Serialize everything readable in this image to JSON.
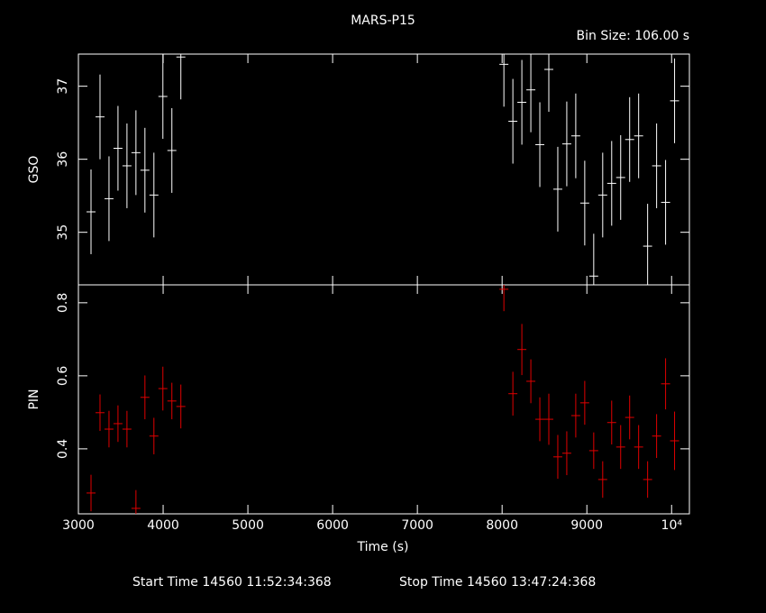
{
  "chart_data": [
    {
      "type": "errorbar",
      "title": "MARS-P15",
      "subtitle": "Bin Size: 106.00 s",
      "ylabel": "GSO",
      "xlim": [
        3000,
        10210
      ],
      "xticks": [
        3000,
        4000,
        5000,
        6000,
        7000,
        8000,
        9000,
        10000
      ],
      "ylim": [
        34.28,
        37.44
      ],
      "yticks": [
        35,
        36,
        37
      ],
      "series": [
        {
          "color": "#ffffff",
          "xerr": 53,
          "x": [
            3149,
            3255,
            3361,
            3467,
            3573,
            3679,
            3785,
            3891,
            3997,
            4103,
            4209,
            8021,
            8127,
            8233,
            8339,
            8445,
            8551,
            8657,
            8763,
            8869,
            8975,
            9081,
            9187,
            9293,
            9399,
            9505,
            9611,
            9717,
            9823,
            9929,
            10035
          ],
          "values": [
            35.28,
            36.58,
            35.46,
            36.15,
            35.91,
            36.09,
            35.85,
            35.51,
            36.86,
            36.12,
            37.4,
            37.3,
            36.52,
            36.78,
            36.95,
            36.2,
            37.23,
            35.59,
            36.21,
            36.32,
            35.4,
            34.4,
            35.51,
            35.67,
            35.75,
            36.27,
            36.32,
            34.81,
            35.91,
            35.41,
            36.8
          ],
          "errors": [
            0.58,
            0.58,
            0.58,
            0.58,
            0.58,
            0.58,
            0.58,
            0.58,
            0.58,
            0.58,
            0.58,
            0.58,
            0.58,
            0.58,
            0.58,
            0.58,
            0.58,
            0.58,
            0.58,
            0.58,
            0.58,
            0.58,
            0.58,
            0.58,
            0.58,
            0.58,
            0.58,
            0.58,
            0.58,
            0.58,
            0.58
          ]
        }
      ]
    },
    {
      "type": "errorbar",
      "ylabel": "PIN",
      "xlabel": "Time (s)",
      "xlim": [
        3000,
        10210
      ],
      "xticks": [
        3000,
        4000,
        5000,
        6000,
        7000,
        8000,
        9000,
        {
          "value": 10000,
          "label": "10⁴"
        }
      ],
      "ylim": [
        0.222,
        0.849
      ],
      "yticks": [
        0.4,
        0.6,
        0.8
      ],
      "series": [
        {
          "color": "#e00000",
          "xerr": 53,
          "x": [
            3149,
            3255,
            3361,
            3467,
            3573,
            3679,
            3785,
            3891,
            3997,
            4103,
            4209,
            8021,
            8127,
            8233,
            8339,
            8445,
            8551,
            8657,
            8763,
            8869,
            8975,
            9081,
            9187,
            9293,
            9399,
            9505,
            9611,
            9717,
            9823,
            9929,
            10035
          ],
          "values": [
            0.279,
            0.499,
            0.454,
            0.469,
            0.454,
            0.237,
            0.541,
            0.435,
            0.565,
            0.531,
            0.516,
            0.837,
            0.551,
            0.672,
            0.585,
            0.481,
            0.481,
            0.378,
            0.388,
            0.491,
            0.526,
            0.395,
            0.316,
            0.472,
            0.405,
            0.486,
            0.405,
            0.316,
            0.435,
            0.578,
            0.422
          ],
          "errors": [
            0.05,
            0.05,
            0.05,
            0.05,
            0.05,
            0.05,
            0.06,
            0.05,
            0.06,
            0.05,
            0.06,
            0.06,
            0.06,
            0.07,
            0.06,
            0.06,
            0.07,
            0.06,
            0.06,
            0.06,
            0.06,
            0.05,
            0.05,
            0.06,
            0.06,
            0.06,
            0.06,
            0.05,
            0.06,
            0.07,
            0.08
          ]
        }
      ],
      "footer": [
        "Start Time 14560 11:52:34:368",
        "Stop Time 14560 13:47:24:368"
      ]
    }
  ]
}
